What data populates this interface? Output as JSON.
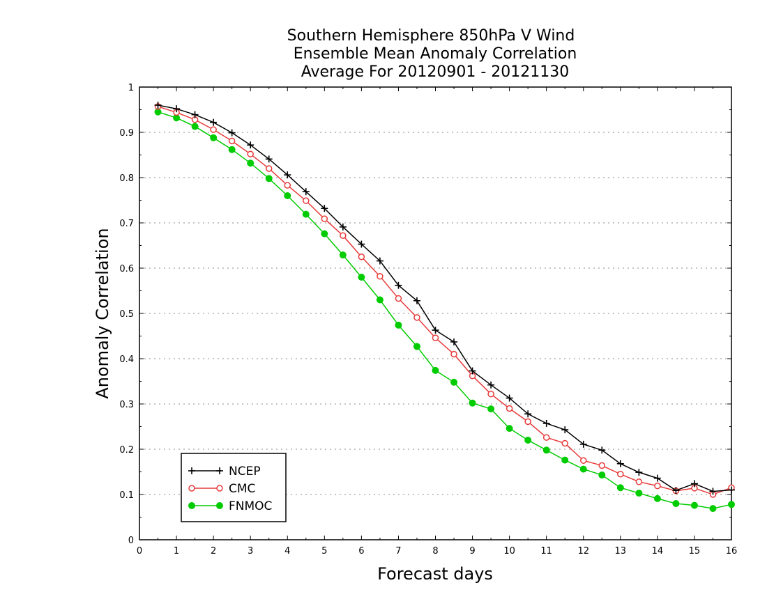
{
  "chart_data": {
    "type": "line",
    "title": [
      "Southern Hemisphere 850hPa V Wind",
      "Ensemble Mean Anomaly Correlation",
      "Average For 20120901 - 20121130"
    ],
    "xlabel": "Forecast days",
    "ylabel": "Anomaly Correlation",
    "xlim": [
      0,
      16
    ],
    "ylim": [
      0,
      1
    ],
    "xticks": [
      "0",
      "1",
      "2",
      "3",
      "4",
      "5",
      "6",
      "7",
      "8",
      "9",
      "10",
      "11",
      "12",
      "13",
      "14",
      "15",
      "16"
    ],
    "yticks": [
      "0",
      "0.1",
      "0.2",
      "0.3",
      "0.4",
      "0.5",
      "0.6",
      "0.7",
      "0.8",
      "0.9",
      "1"
    ],
    "grid": "horizontal-dotted",
    "legend_position": "bottom-left",
    "x": [
      0.5,
      1,
      1.5,
      2,
      2.5,
      3,
      3.5,
      4,
      4.5,
      5,
      5.5,
      6,
      6.5,
      7,
      7.5,
      8,
      8.5,
      9,
      9.5,
      10,
      10.5,
      11,
      11.5,
      12,
      12.5,
      13,
      13.5,
      14,
      14.5,
      15,
      15.5,
      16
    ],
    "series": [
      {
        "name": "NCEP",
        "color": "#000000",
        "marker": "plus",
        "values": [
          0.96,
          0.952,
          0.939,
          0.922,
          0.899,
          0.872,
          0.841,
          0.806,
          0.769,
          0.732,
          0.691,
          0.653,
          0.616,
          0.562,
          0.528,
          0.463,
          0.437,
          0.373,
          0.342,
          0.313,
          0.278,
          0.257,
          0.243,
          0.211,
          0.198,
          0.168,
          0.149,
          0.136,
          0.109,
          0.124,
          0.107,
          0.11
        ]
      },
      {
        "name": "CMC",
        "color": "#e83a3a",
        "marker": "open-circle",
        "values": [
          0.957,
          0.944,
          0.928,
          0.906,
          0.881,
          0.852,
          0.82,
          0.783,
          0.749,
          0.709,
          0.672,
          0.625,
          0.582,
          0.533,
          0.491,
          0.446,
          0.41,
          0.362,
          0.322,
          0.29,
          0.261,
          0.226,
          0.213,
          0.175,
          0.164,
          0.145,
          0.128,
          0.119,
          0.108,
          0.114,
          0.1,
          0.115
        ]
      },
      {
        "name": "FNMOC",
        "color": "#00cc00",
        "marker": "filled-circle",
        "values": [
          0.945,
          0.932,
          0.913,
          0.888,
          0.862,
          0.832,
          0.798,
          0.76,
          0.719,
          0.676,
          0.629,
          0.58,
          0.53,
          0.474,
          0.427,
          0.374,
          0.348,
          0.302,
          0.289,
          0.246,
          0.22,
          0.198,
          0.176,
          0.156,
          0.143,
          0.115,
          0.103,
          0.091,
          0.08,
          0.076,
          0.069,
          0.078
        ]
      }
    ]
  }
}
